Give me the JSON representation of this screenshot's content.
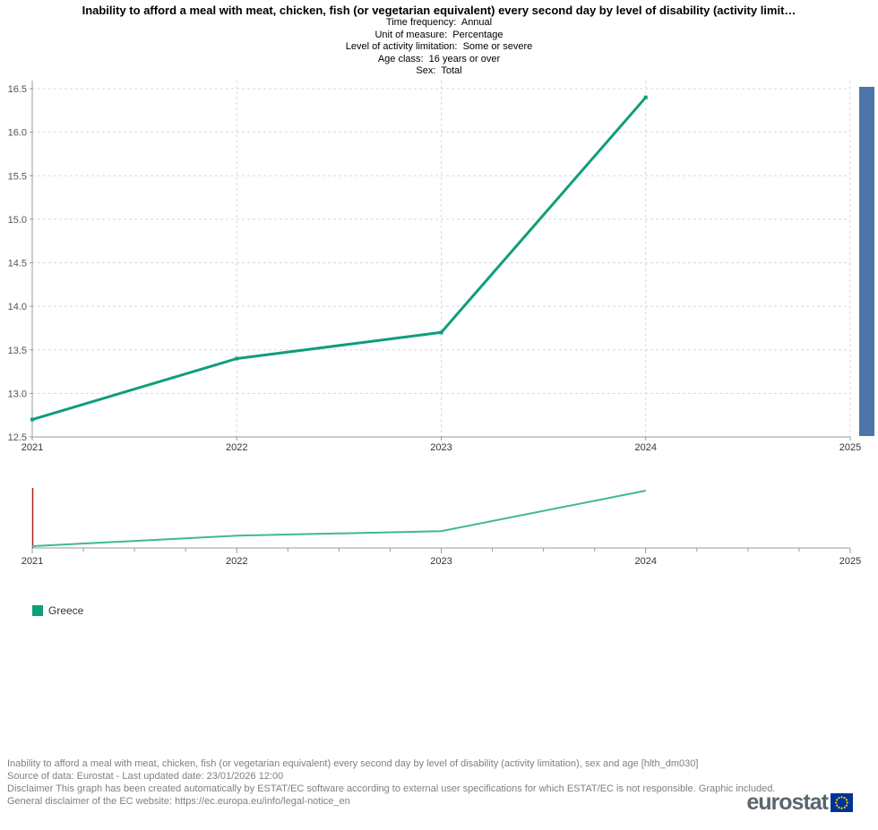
{
  "header": {
    "title": "Inability to afford a meal with meat, chicken, fish (or vegetarian equivalent) every second day by level of disability (activity limit…",
    "subtitle_lines": [
      "Time frequency:  Annual",
      "Unit of measure:  Percentage",
      "Level of activity limitation:  Some or severe",
      "Age class:  16 years or over",
      "Sex:  Total"
    ]
  },
  "chart_data": [
    {
      "role": "main",
      "type": "line",
      "x": [
        2021,
        2022,
        2023,
        2024
      ],
      "series": [
        {
          "name": "Greece",
          "color": "#0f9e7b",
          "values": [
            12.7,
            13.4,
            13.7,
            16.4
          ]
        }
      ],
      "xlim": [
        2021,
        2025
      ],
      "ylim": [
        12.5,
        16.5
      ],
      "x_tick_labels": [
        "2021",
        "2022",
        "2023",
        "2024",
        "2025"
      ],
      "y_tick_labels": [
        "12.5",
        "13.0",
        "13.5",
        "14.0",
        "14.5",
        "15.0",
        "15.5",
        "16.0",
        "16.5"
      ],
      "grid": true,
      "legend_position": "bottom-left"
    },
    {
      "role": "navigator",
      "type": "line",
      "x": [
        2021,
        2022,
        2023,
        2024
      ],
      "series": [
        {
          "name": "Greece",
          "color": "#3fb79a",
          "values": [
            12.7,
            13.4,
            13.7,
            16.4
          ]
        }
      ],
      "xlim": [
        2021,
        2025
      ],
      "x_tick_labels": [
        "2021",
        "2022",
        "2023",
        "2024",
        "2025"
      ],
      "minor_ticks_per_year": 4,
      "left_edge_color": "#a42222"
    }
  ],
  "legend": {
    "items": [
      {
        "label": "Greece",
        "color": "#0f9e7b"
      }
    ]
  },
  "scrollbar": {
    "color": "#4d76a8"
  },
  "footer": {
    "lines": [
      "Inability to afford a meal with meat, chicken, fish (or vegetarian equivalent) every second day by level of disability (activity limitation), sex and age [hlth_dm030]",
      "Source of data: Eurostat - Last updated date: 23/01/2026 12:00",
      "Disclaimer This graph has been created automatically by ESTAT/EC software according to external user specifications for which ESTAT/EC is not responsible. Graphic included.",
      "General disclaimer of the EC website: https://ec.europa.eu/info/legal-notice_en"
    ]
  },
  "logo": {
    "text": "eurostat",
    "flag_color": "#003399",
    "star_color": "#ffcc00"
  },
  "colors": {
    "grid": "#d8d8d8",
    "axis": "#999999",
    "y_tick_label": "#555555",
    "x_tick_label": "#333333"
  }
}
